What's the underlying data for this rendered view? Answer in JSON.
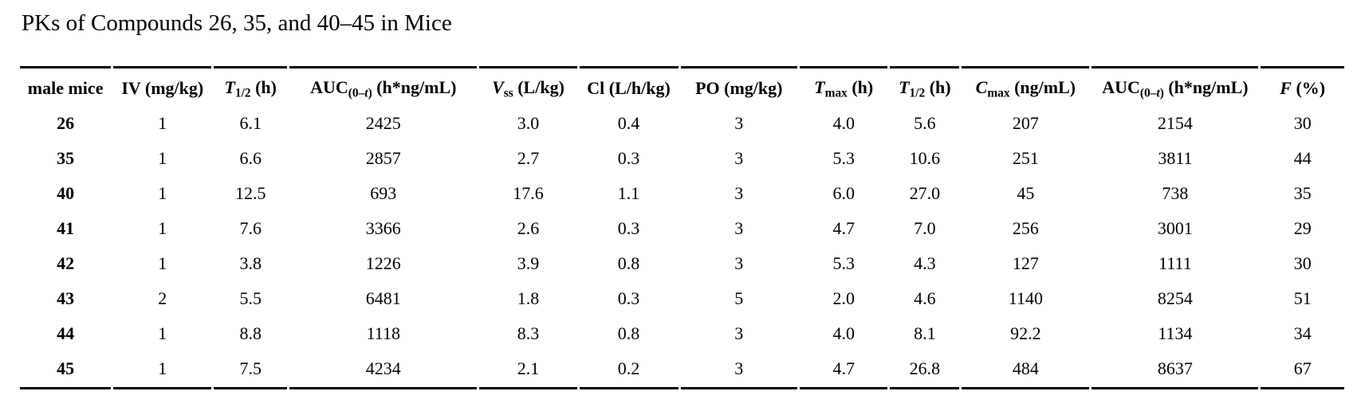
{
  "title": "PKs of Compounds 26, 35, and 40–45 in Mice",
  "colors": {
    "background": "#ffffff",
    "text": "#000000",
    "rule": "#000000"
  },
  "table": {
    "columns": [
      {
        "id": "male-mice",
        "width": 7.02,
        "segments": [
          {
            "t": "male mice"
          }
        ]
      },
      {
        "id": "iv-dose",
        "width": 7.56,
        "segments": [
          {
            "t": "IV (mg/kg)"
          }
        ]
      },
      {
        "id": "iv-t-half",
        "width": 5.64,
        "segments": [
          {
            "t": "T",
            "i": true
          },
          {
            "t": "1/2",
            "sub": true
          },
          {
            "t": " (h)"
          }
        ]
      },
      {
        "id": "iv-auc",
        "width": 14.46,
        "segments": [
          {
            "t": "AUC"
          },
          {
            "t": "(0–",
            "sub": true
          },
          {
            "t": "t",
            "sub": true,
            "i": true
          },
          {
            "t": ")",
            "sub": true
          },
          {
            "t": " (h*ng/mL)"
          }
        ]
      },
      {
        "id": "vss",
        "width": 7.5,
        "segments": [
          {
            "t": "V",
            "i": true
          },
          {
            "t": "ss",
            "sub": true
          },
          {
            "t": " (L/kg)"
          }
        ]
      },
      {
        "id": "cl",
        "width": 7.62,
        "segments": [
          {
            "t": "Cl (L/h/kg)"
          }
        ]
      },
      {
        "id": "po-dose",
        "width": 9.0,
        "segments": [
          {
            "t": "PO (mg/kg)"
          }
        ]
      },
      {
        "id": "tmax",
        "width": 6.78,
        "segments": [
          {
            "t": "T",
            "i": true
          },
          {
            "t": "max",
            "sub": true
          },
          {
            "t": " (h)"
          }
        ]
      },
      {
        "id": "po-t-half",
        "width": 5.34,
        "segments": [
          {
            "t": "T",
            "i": true
          },
          {
            "t": "1/2",
            "sub": true
          },
          {
            "t": " (h)"
          }
        ]
      },
      {
        "id": "cmax",
        "width": 9.84,
        "segments": [
          {
            "t": "C",
            "i": true
          },
          {
            "t": "max",
            "sub": true
          },
          {
            "t": " (ng/mL)"
          }
        ]
      },
      {
        "id": "po-auc",
        "width": 12.84,
        "segments": [
          {
            "t": "AUC"
          },
          {
            "t": "(0–",
            "sub": true
          },
          {
            "t": "t",
            "sub": true,
            "i": true
          },
          {
            "t": ")",
            "sub": true
          },
          {
            "t": " (h*ng/mL)"
          }
        ]
      },
      {
        "id": "f-percent",
        "width": 6.42,
        "segments": [
          {
            "t": "F",
            "i": true
          },
          {
            "t": " (%)"
          }
        ]
      }
    ],
    "rows": [
      {
        "compound": "26",
        "values": [
          "1",
          "6.1",
          "2425",
          "3.0",
          "0.4",
          "3",
          "4.0",
          "5.6",
          "207",
          "2154",
          "30"
        ]
      },
      {
        "compound": "35",
        "values": [
          "1",
          "6.6",
          "2857",
          "2.7",
          "0.3",
          "3",
          "5.3",
          "10.6",
          "251",
          "3811",
          "44"
        ]
      },
      {
        "compound": "40",
        "values": [
          "1",
          "12.5",
          "693",
          "17.6",
          "1.1",
          "3",
          "6.0",
          "27.0",
          "45",
          "738",
          "35"
        ]
      },
      {
        "compound": "41",
        "values": [
          "1",
          "7.6",
          "3366",
          "2.6",
          "0.3",
          "3",
          "4.7",
          "7.0",
          "256",
          "3001",
          "29"
        ]
      },
      {
        "compound": "42",
        "values": [
          "1",
          "3.8",
          "1226",
          "3.9",
          "0.8",
          "3",
          "5.3",
          "4.3",
          "127",
          "1111",
          "30"
        ]
      },
      {
        "compound": "43",
        "values": [
          "2",
          "5.5",
          "6481",
          "1.8",
          "0.3",
          "5",
          "2.0",
          "4.6",
          "1140",
          "8254",
          "51"
        ]
      },
      {
        "compound": "44",
        "values": [
          "1",
          "8.8",
          "1118",
          "8.3",
          "0.8",
          "3",
          "4.0",
          "8.1",
          "92.2",
          "1134",
          "34"
        ]
      },
      {
        "compound": "45",
        "values": [
          "1",
          "7.5",
          "4234",
          "2.1",
          "0.2",
          "3",
          "4.7",
          "26.8",
          "484",
          "8637",
          "67"
        ]
      }
    ]
  }
}
